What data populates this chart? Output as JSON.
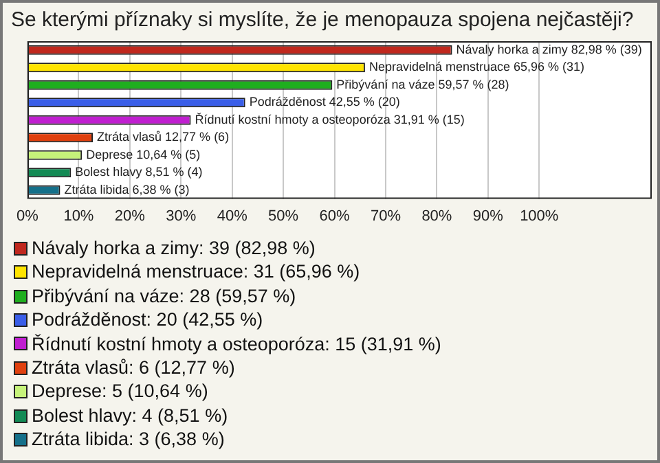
{
  "chart_data": {
    "type": "bar",
    "orientation": "horizontal",
    "title": "Se kterými příznaky si myslíte, že je menopauza spojena nejčastěji?",
    "categories": [
      "Návaly horka a zimy",
      "Nepravidelná menstruace",
      "Přibývání na váze",
      "Podrážděnost",
      "Řídnutí kostní hmoty a osteoporóza",
      "Ztráta vlasů",
      "Deprese",
      "Bolest hlavy",
      "Ztráta libida"
    ],
    "values": [
      82.98,
      65.96,
      59.57,
      42.55,
      31.91,
      12.77,
      10.64,
      8.51,
      6.38
    ],
    "colors": [
      "#c0281e",
      "#ffe400",
      "#1fae1f",
      "#3a5ee8",
      "#c01fd0",
      "#e0400e",
      "#c6f27a",
      "#138a55",
      "#15708a"
    ],
    "value_labels": [
      "82,98 % (39)",
      "65,96 % (31)",
      "59,57 % (28)",
      "42,55 % (20)",
      "31,91 % (15)",
      "12,77 % (6)",
      "10,64 % (5)",
      "8,51 % (4)",
      "6,38 % (3)"
    ],
    "xlim": [
      0,
      122
    ],
    "xticks": [
      {
        "value": 0,
        "label": "0%"
      },
      {
        "value": 10,
        "label": "10%"
      },
      {
        "value": 20,
        "label": "20%"
      },
      {
        "value": 30,
        "label": "30%"
      },
      {
        "value": 40,
        "label": "40%"
      },
      {
        "value": 50,
        "label": "50%"
      },
      {
        "value": 60,
        "label": "60%"
      },
      {
        "value": 70,
        "label": "70%"
      },
      {
        "value": 80,
        "label": "80%"
      },
      {
        "value": 90,
        "label": "90%"
      },
      {
        "value": 100,
        "label": "100%"
      }
    ],
    "grid": "x",
    "tick_labels": "x",
    "annotations": [
      "Návaly horka a zimy: 39 (82,98 %)",
      "Nepravidelná menstruace: 31 (65,96 %)",
      "Přibývání na váze: 28 (59,57 %)",
      "Podrážděnost: 20 (42,55 %)",
      "Řídnutí kostní hmoty a osteoporóza: 15 (31,91 %)",
      "Ztráta vlasů: 6 (12,77 %)",
      "Deprese: 5 (10,64 %)",
      "Bolest hlavy: 4 (8,51 %)",
      "Ztráta libida: 3 (6,38 %)"
    ]
  }
}
